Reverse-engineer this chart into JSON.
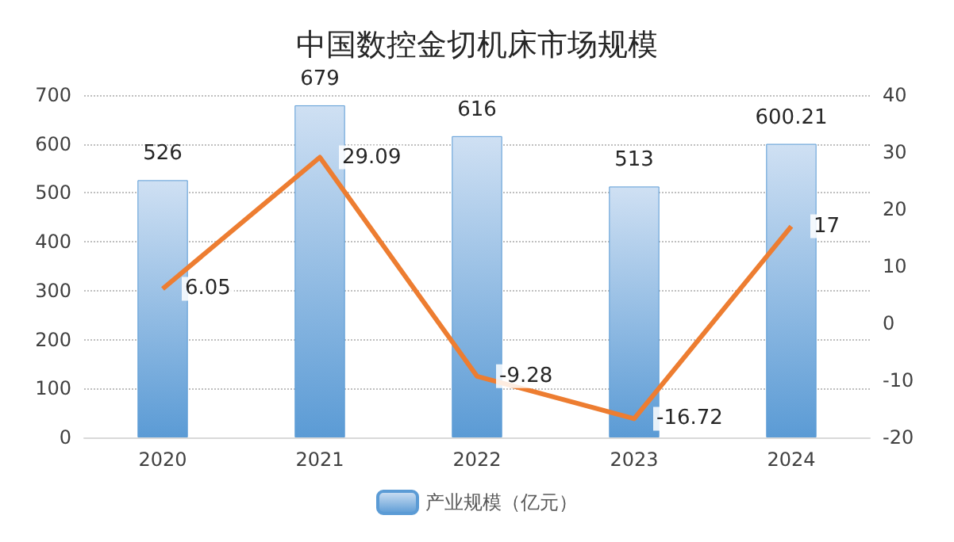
{
  "chart_data": {
    "type": "bar",
    "title": "中国数控金切机床市场规模",
    "categories": [
      "2020",
      "2021",
      "2022",
      "2023",
      "2024"
    ],
    "series": [
      {
        "name": "产业规模（亿元）",
        "color": "#5b9bd5",
        "values": [
          526,
          679,
          616,
          513,
          600.21
        ]
      },
      {
        "type": "line",
        "axis": "y2",
        "color": "#ed7d31",
        "values": [
          6.05,
          29.09,
          -9.28,
          -16.72,
          17
        ]
      }
    ],
    "ylim": [
      0,
      700
    ],
    "yticks": [
      0,
      100,
      200,
      300,
      400,
      500,
      600,
      700
    ],
    "y2lim": [
      -20,
      40
    ],
    "y2ticks": [
      -20,
      -10,
      0,
      10,
      20,
      30,
      40
    ],
    "grid": "y",
    "legend": "bottom",
    "data_labels": true
  }
}
